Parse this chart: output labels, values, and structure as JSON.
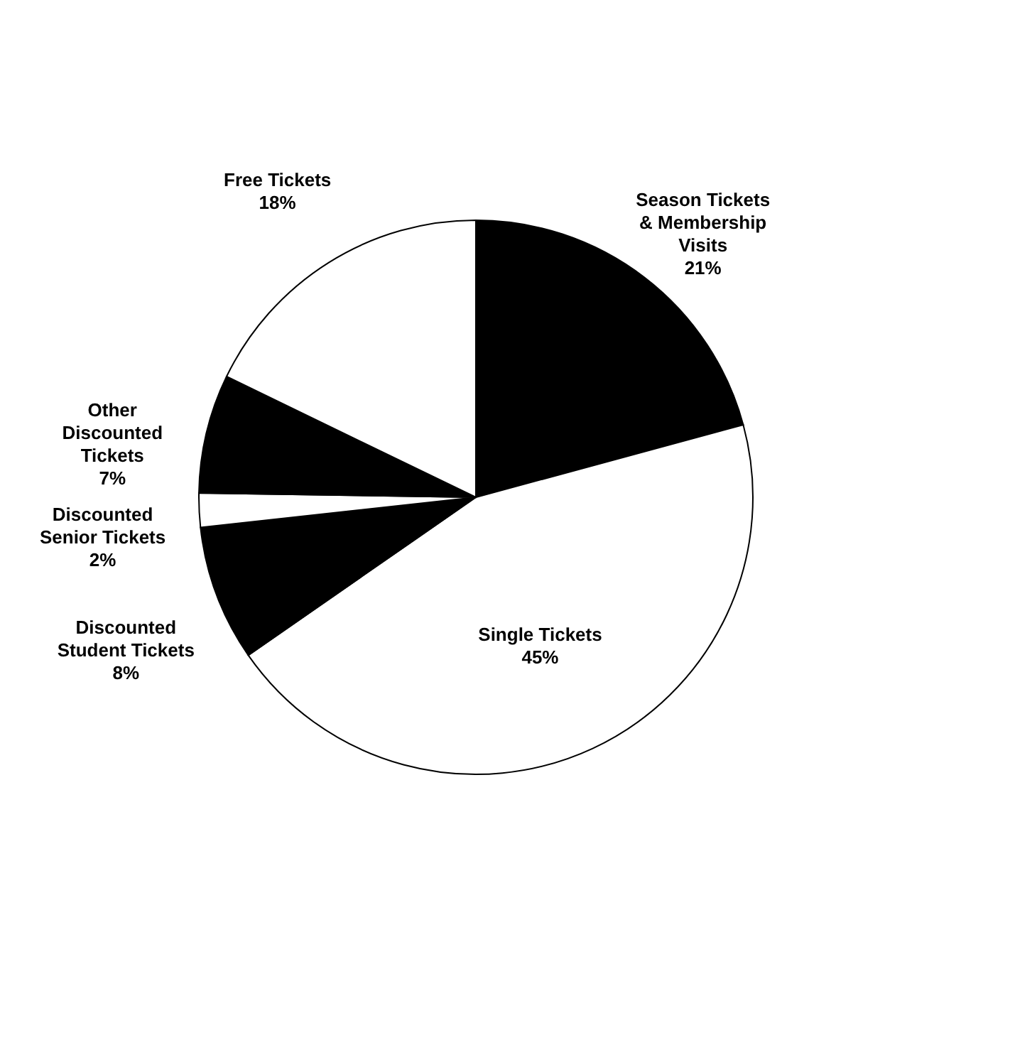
{
  "chart_data": {
    "type": "pie",
    "categories": [
      "Season Tickets & Membership Visits",
      "Single Tickets",
      "Discounted Student Tickets",
      "Discounted Senior Tickets",
      "Other Discounted Tickets",
      "Free Tickets"
    ],
    "values": [
      21,
      45,
      8,
      2,
      7,
      18
    ],
    "colors": [
      "#000000",
      "#ffffff",
      "#000000",
      "#ffffff",
      "#000000",
      "#ffffff"
    ],
    "value_labels": [
      "21%",
      "45%",
      "8%",
      "2%",
      "7%",
      "18%"
    ]
  }
}
